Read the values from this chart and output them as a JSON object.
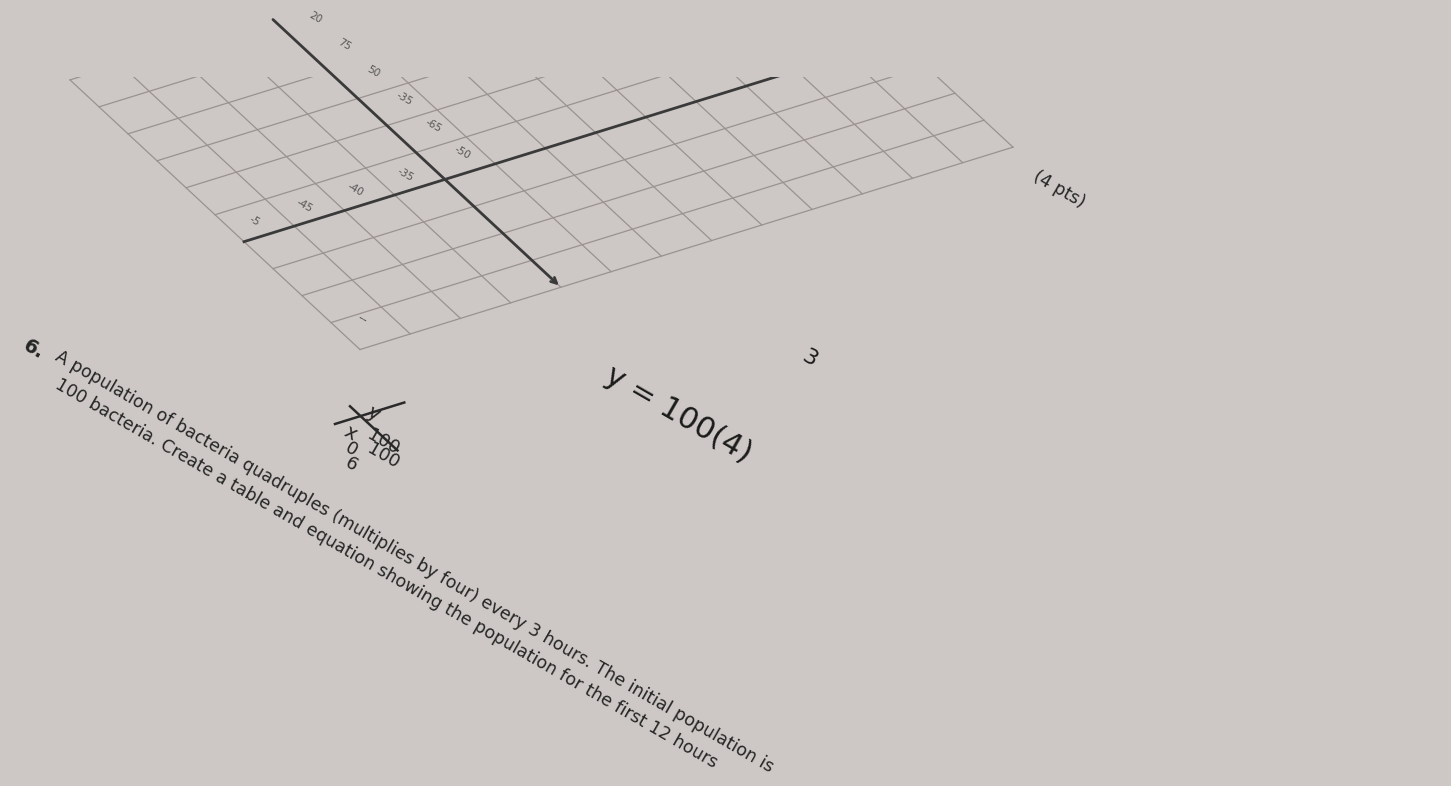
{
  "bg_color": "#cdc8c5",
  "paper_color": "#e2dcd8",
  "grid_color": "#9a9290",
  "axis_color": "#3a3a3a",
  "text_color": "#2a2a2a",
  "text_color_light": "#6a6a6a",
  "question_number": "6.",
  "problem_line1": "A population of bacteria quadruples (multiplies by four) every 3 hours. The initial population is",
  "problem_line2": "100 bacteria. Create a table and equation showing the population for the first 12 hours",
  "points": "(4 pts)",
  "table_label_x": "x",
  "table_label_y": "y",
  "table_x_values": [
    "0",
    "6"
  ],
  "table_y_values": [
    "100",
    "100"
  ],
  "equation_main": "y = 100(4)",
  "exponent": "3",
  "grid_rotation_deg": -30,
  "grid_rows": 10,
  "grid_cols": 13,
  "grid_cell_size": 58,
  "axis_col": 4,
  "axis_row": 6,
  "top_axis_labels": [
    [
      "20",
      7,
      -0.6
    ],
    [
      "75",
      7,
      0.5
    ],
    [
      "50",
      7,
      1.5
    ],
    [
      "-35",
      7,
      2.8
    ],
    [
      "-65",
      7,
      3.8
    ],
    [
      "-50",
      7,
      5.0
    ]
  ],
  "side_axis_labels": [
    [
      "-5",
      2.8,
      6.2
    ],
    [
      "-45",
      1.8,
      6.2
    ],
    [
      "-40",
      0.8,
      6.2
    ],
    [
      "-35",
      -0.2,
      6.2
    ]
  ]
}
